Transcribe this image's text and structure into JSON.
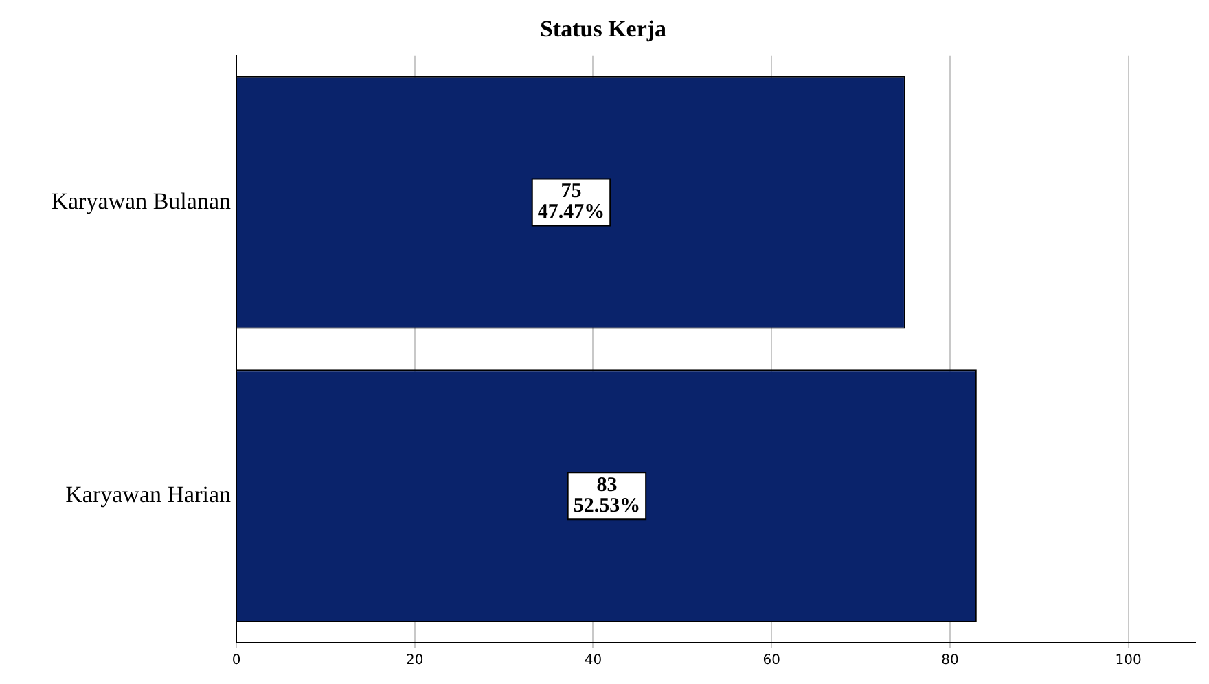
{
  "chart_data": {
    "type": "bar",
    "orientation": "horizontal",
    "title": "Status Kerja",
    "categories": [
      "Karyawan Bulanan",
      "Karyawan Harian"
    ],
    "values": [
      75,
      83
    ],
    "color": "#0a236b",
    "value_labels": [
      "75\n47.47%",
      "83\n52.53%"
    ],
    "xlim": [
      0,
      107.5
    ],
    "xticks": [
      0,
      20,
      40,
      60,
      80,
      100
    ],
    "grid": "x"
  }
}
